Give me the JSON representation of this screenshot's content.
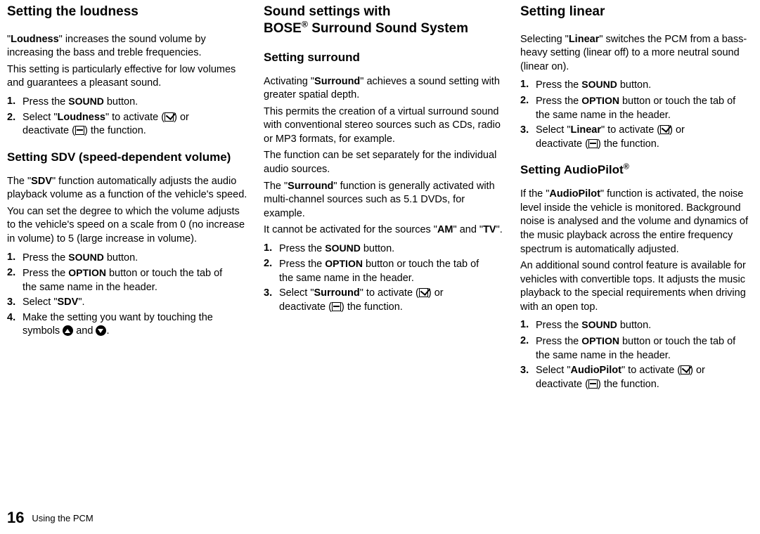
{
  "col1": {
    "h1": "Setting the loudness",
    "p1a": "\"",
    "p1b": "Loudness",
    "p1c": "\" increases the sound volume by increasing the bass and treble frequencies.",
    "p2": "This setting is particularly effective for low volumes and guarantees a pleasant sound.",
    "steps1": [
      {
        "num": "1.",
        "pre": "Press the ",
        "btn": "SOUND",
        "post": " button."
      },
      {
        "num": "2.",
        "pre": "Select \"",
        "bold": "Loudness",
        "mid": "\" to activate (",
        "post1": ") or",
        "line2a": "deactivate (",
        "line2b": ") the function."
      }
    ],
    "h2": "Setting SDV (speed-dependent volume)",
    "p3a": "The \"",
    "p3b": "SDV",
    "p3c": "\" function automatically adjusts the audio playback volume as a function of the vehicle's speed.",
    "p4": "You can set the degree to which the volume adjusts to the vehicle's speed on a scale from 0 (no increase in volume) to 5 (large increase in volume).",
    "steps2": [
      {
        "num": "1.",
        "pre": "Press the ",
        "btn": "SOUND",
        "post": " button."
      },
      {
        "num": "2.",
        "pre": "Press the ",
        "btn": "OPTION",
        "post": " button or touch the tab of",
        "line2": "the same name in the header."
      },
      {
        "num": "3.",
        "pre": "Select \"",
        "bold": "SDV",
        "post": "\"."
      },
      {
        "num": "4.",
        "pre": "Make the setting you want by touching the",
        "line2a": "symbols ",
        "line2b": " and ",
        "line2c": "."
      }
    ]
  },
  "col2": {
    "h1a": "Sound settings with",
    "h1b": "BOSE",
    "h1c": " Surround Sound System",
    "h2a": "Setting surround",
    "p1a": "Activating \"",
    "p1b": "Surround",
    "p1c": "\" achieves a sound setting with greater spatial depth.",
    "p2": "This permits the creation of a virtual surround sound with conventional stereo sources such as CDs, radio or MP3 formats, for example.",
    "p3": "The function can be set separately for the individual audio sources.",
    "p4a": "The \"",
    "p4b": "Surround",
    "p4c": "\" function is generally activated with multi-channel sources such as 5.1 DVDs, for example.",
    "p5a": "It cannot be activated for the sources \"",
    "p5b": "AM",
    "p5c": "\" and \"",
    "p5d": "TV",
    "p5e": "\".",
    "steps": [
      {
        "num": "1.",
        "pre": "Press the ",
        "btn": "SOUND",
        "post": " button."
      },
      {
        "num": "2.",
        "pre": "Press the ",
        "btn": "OPTION",
        "post": " button or touch the tab of",
        "line2": "the same name in the header."
      },
      {
        "num": "3.",
        "pre": "Select \"",
        "bold": "Surround",
        "mid": "\" to activate (",
        "post1": ") or",
        "line2a": "deactivate (",
        "line2b": ") the function."
      }
    ]
  },
  "col3": {
    "h1": "Setting linear",
    "p1a": "Selecting \"",
    "p1b": "Linear",
    "p1c": "\" switches the PCM from a bass-heavy setting (linear off) to a more neutral sound (linear on).",
    "steps1": [
      {
        "num": "1.",
        "pre": "Press the ",
        "btn": "SOUND",
        "post": " button."
      },
      {
        "num": "2.",
        "pre": "Press the ",
        "btn": "OPTION",
        "post": " button or touch the tab of",
        "line2": "the same name in the header."
      },
      {
        "num": "3.",
        "pre": "Select \"",
        "bold": "Linear",
        "mid": "\" to activate (",
        "post1": ") or",
        "line2a": "deactivate (",
        "line2b": ") the function."
      }
    ],
    "h2a": "Setting AudioPilot",
    "p2a": "If the \"",
    "p2b": "AudioPilot",
    "p2c": "\" function is activated, the noise level inside the vehicle is monitored. Background noise is analysed and the volume and dynamics of the music playback across the entire frequency spectrum is automatically adjusted.",
    "p3": "An additional sound control feature is available for vehicles with convertible tops. It adjusts the music playback to the special requirements when driving with an open top.",
    "steps2": [
      {
        "num": "1.",
        "pre": "Press the ",
        "btn": "SOUND",
        "post": " button."
      },
      {
        "num": "2.",
        "pre": "Press the ",
        "btn": "OPTION",
        "post": " button or touch the tab of",
        "line2": "the same name in the header."
      },
      {
        "num": "3.",
        "pre": "Select \"",
        "bold": "AudioPilot",
        "mid": "\" to activate (",
        "post1": ") or",
        "line2a": "deactivate (",
        "line2b": ") the function."
      }
    ]
  },
  "footer": {
    "page": "16",
    "section": "Using the PCM"
  }
}
